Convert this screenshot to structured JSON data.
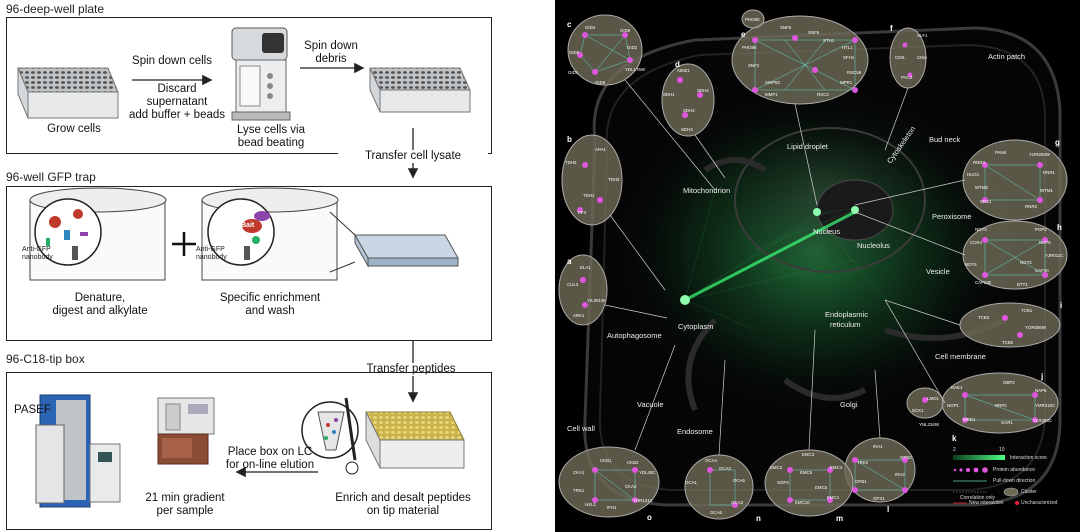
{
  "workflow": {
    "sections": [
      {
        "title": "96-deep-well plate"
      },
      {
        "title": "96-well GFP trap"
      },
      {
        "title": "96-C18-tip box"
      }
    ],
    "steps": {
      "grow": "Grow cells",
      "spin_cells": "Spin down cells",
      "discard": "Discard",
      "supernatant": "supernatant",
      "add_buffer": "add buffer + beads",
      "lyse1": "Lyse cells via",
      "lyse2": "bead beating",
      "spin_debris1": "Spin down",
      "spin_debris2": "debris",
      "transfer_lysate": "Transfer cell lysate",
      "denature1": "Denature,",
      "denature2": "digest and alkylate",
      "specific1": "Specific enrichment",
      "specific2": "and wash",
      "anti_gfp1": "Anti-GFP",
      "anti_gfp2": "nanobody",
      "bait": "Bait",
      "transfer_peptides": "Transfer peptides",
      "pasef": "PASEF",
      "place_box1": "Place box on LC",
      "place_box2": "for on-line elution",
      "gradient1": "21 min gradient",
      "gradient2": "per sample",
      "enrich1": "Enrich and desalt peptides",
      "enrich2": "on tip material"
    }
  },
  "network": {
    "compartments": [
      "Actin patch",
      "Bud neck",
      "Cytoskeleton",
      "Lipid droplet",
      "Mitochondrion",
      "Nucleus",
      "Nucleolus",
      "Peroxisome",
      "Vesicle",
      "Autophagosome",
      "Cytoplasm",
      "Endoplasmic",
      "reticulum",
      "Cell membrane",
      "Golgi",
      "Vacuole",
      "Endosome",
      "Cell wall"
    ],
    "clusters": [
      {
        "letter": "c",
        "genes": [
          "GID4",
          "GID8",
          "GID2",
          "YDL176W",
          "GID5",
          "GID7",
          "GID1",
          "GID9",
          "GID6"
        ]
      },
      {
        "letter": "d",
        "genes": [
          "AIM21",
          "SDH1",
          "SDH4",
          "SDH2",
          "SDH3"
        ]
      },
      {
        "letter": "e",
        "genes": [
          "PHO80",
          "PHO85",
          "SNF6",
          "SNF5",
          "SWI1",
          "SNF12",
          "RSC6",
          "RSC8",
          "STH1",
          "HTL1",
          "SFH1",
          "RSC58",
          "RSC4",
          "RSC30",
          "MPR1",
          "NPL6",
          "RSC3",
          "RSC9",
          "ARP7",
          "ARP9",
          "SNF11",
          "SWP82",
          "SNF2",
          "TAF14",
          "MMP1"
        ]
      },
      {
        "letter": "f",
        "genes": [
          "ALF1",
          "CIN4",
          "CIN1",
          "PAC2"
        ]
      },
      {
        "letter": "b",
        "genes": [
          "APA1",
          "TDH2",
          "TDH3",
          "TDH1",
          "TIF3"
        ]
      },
      {
        "letter": "g",
        "genes": [
          "PAN6",
          "YOR283W",
          "RNR4",
          "RNR1",
          "HUG1",
          "WTM1",
          "WTM2",
          "SRX1",
          "RNR2"
        ]
      },
      {
        "letter": "h",
        "genes": [
          "NOT3",
          "POP2",
          "CCR4",
          "NOT5",
          "YJR011C",
          "NOT2",
          "CAF40",
          "NOT4",
          "CAF130",
          "BTT1"
        ]
      },
      {
        "letter": "a",
        "genes": [
          "ELA1",
          "CUL3",
          "YIL001W",
          "ARK1"
        ]
      },
      {
        "letter": "i",
        "genes": [
          "TCB1",
          "TCB3",
          "YOR086W",
          "TCB2"
        ]
      },
      {
        "letter": "j",
        "genes": [
          "NAE1",
          "GBP2",
          "NAP6",
          "YMR310C",
          "NOP1",
          "NRP2",
          "NRP3",
          "MRD1",
          "GAR1",
          "YLR283C"
        ]
      },
      {
        "letter": "k",
        "genes": [
          "DCK1",
          "LMO1",
          "YNL234W"
        ]
      },
      {
        "letter": "l",
        "genes": [
          "IRA1",
          "TRK2",
          "GPB2",
          "IRA2",
          "GPB1",
          "GPX1"
        ]
      },
      {
        "letter": "m",
        "genes": [
          "EMC2",
          "EMC3",
          "EMC6",
          "EMC4",
          "SOP4",
          "EMC5",
          "EMC10",
          "EMC1"
        ]
      },
      {
        "letter": "n",
        "genes": [
          "OCA4",
          "OCA2",
          "OCA5",
          "OCA1",
          "OCA6",
          "OCA3"
        ]
      },
      {
        "letter": "o",
        "genes": [
          "CKB1",
          "CKB2",
          "CKA1",
          "CKA2",
          "YDL40C",
          "TRK1",
          "YHR131C",
          "HSL1",
          "IFH1"
        ]
      }
    ],
    "legend": {
      "scale_min": "2",
      "scale_max": "10",
      "interaction_score": "Interaction score",
      "protein_abundance": "Protein abundance",
      "pull_down": "Pull-down direction",
      "correlation": "Correlation only",
      "cluster": "Cluster",
      "new_interaction": "New interaction",
      "uncharacterized": "Uncharacterized"
    }
  }
}
